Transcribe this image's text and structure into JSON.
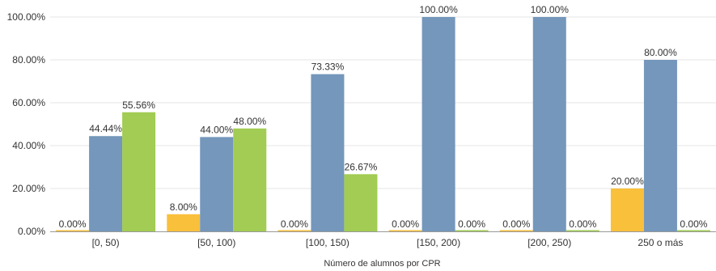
{
  "chart_data": {
    "type": "bar",
    "xlabel": "Número de alumnos por CPR",
    "ylabel": "",
    "ylim": [
      0,
      100
    ],
    "yticks": [
      "0.00%",
      "20.00%",
      "40.00%",
      "60.00%",
      "80.00%",
      "100.00%"
    ],
    "ytick_values": [
      0,
      20,
      40,
      60,
      80,
      100
    ],
    "categories": [
      "[0, 50)",
      "[50, 100)",
      "[100, 150)",
      "[150, 200)",
      "[200, 250)",
      "250 o más"
    ],
    "series": [
      {
        "color": "#f9c03c",
        "values": [
          0,
          8,
          0,
          0,
          0,
          20
        ],
        "labels": [
          "0.00%",
          "8.00%",
          "0.00%",
          "0.00%",
          "0.00%",
          "20.00%"
        ]
      },
      {
        "color": "#7497bb",
        "values": [
          44.44,
          44,
          73.33,
          100,
          100,
          80
        ],
        "labels": [
          "44.44%",
          "44.00%",
          "73.33%",
          "100.00%",
          "100.00%",
          "80.00%"
        ]
      },
      {
        "color": "#a2cc53",
        "values": [
          55.56,
          48,
          26.67,
          0,
          0,
          0
        ],
        "labels": [
          "55.56%",
          "48.00%",
          "26.67%",
          "0.00%",
          "0.00%",
          "0.00%"
        ]
      }
    ],
    "grid": true,
    "legend": "none"
  }
}
